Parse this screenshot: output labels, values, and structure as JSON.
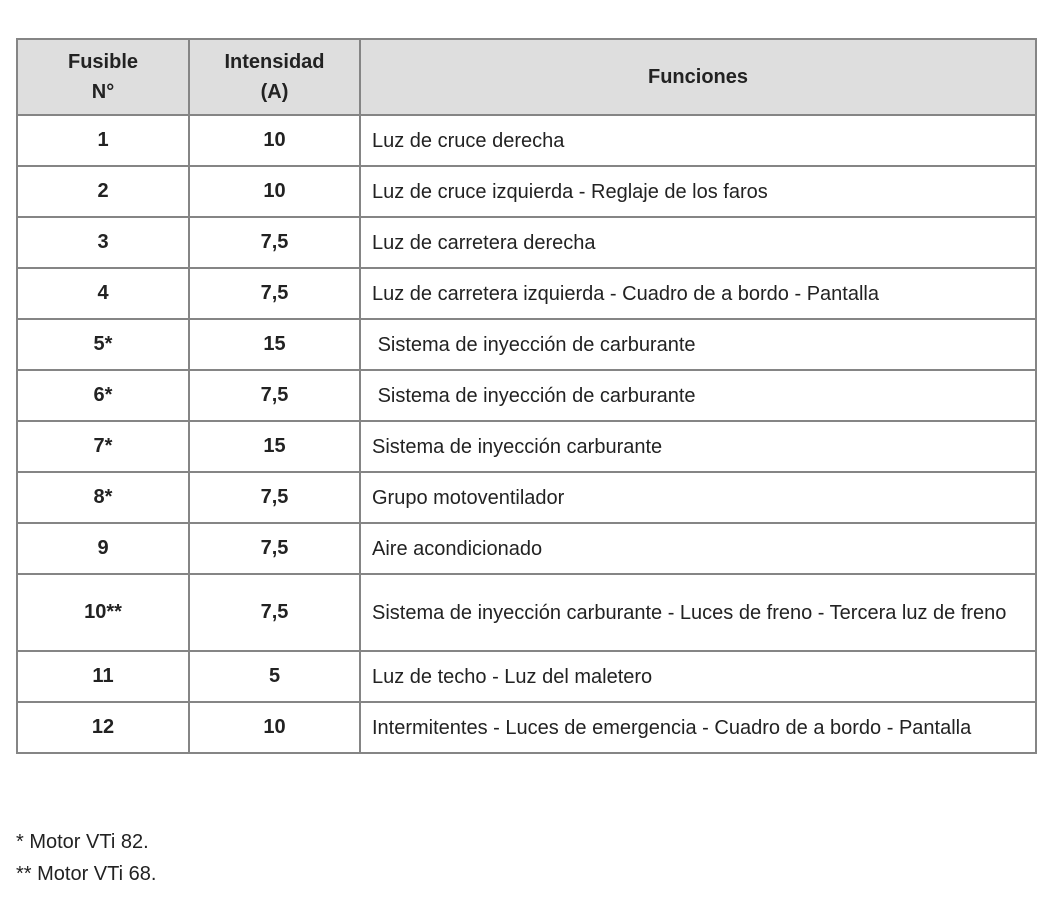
{
  "headers": {
    "fuse": "Fusible\nN°",
    "amps": "Intensidad\n(A)",
    "functions": "Funciones"
  },
  "rows": [
    {
      "fuse": "1",
      "amps": "10",
      "functions": "Luz de cruce derecha"
    },
    {
      "fuse": "2",
      "amps": "10",
      "functions": "Luz de cruce izquierda - Reglaje de los faros"
    },
    {
      "fuse": "3",
      "amps": "7,5",
      "functions": "Luz de carretera derecha"
    },
    {
      "fuse": "4",
      "amps": "7,5",
      "functions": "Luz de carretera izquierda - Cuadro de a bordo - Pantalla"
    },
    {
      "fuse": "5*",
      "amps": "15",
      "functions": " Sistema de inyección de carburante"
    },
    {
      "fuse": "6*",
      "amps": "7,5",
      "functions": " Sistema de inyección de carburante"
    },
    {
      "fuse": "7*",
      "amps": "15",
      "functions": "Sistema de inyección carburante"
    },
    {
      "fuse": "8*",
      "amps": "7,5",
      "functions": "Grupo motoventilador"
    },
    {
      "fuse": "9",
      "amps": "7,5",
      "functions": "Aire acondicionado"
    },
    {
      "fuse": "10**",
      "amps": "7,5",
      "functions": "Sistema de inyección carburante - Luces de freno - Tercera luz de freno"
    },
    {
      "fuse": "11",
      "amps": "5",
      "functions": "Luz de techo - Luz del maletero"
    },
    {
      "fuse": "12",
      "amps": "10",
      "functions": "Intermitentes - Luces de emergencia - Cuadro de a bordo - Pantalla"
    }
  ],
  "notes": [
    "* Motor VTi 82.",
    "** Motor VTi 68."
  ]
}
